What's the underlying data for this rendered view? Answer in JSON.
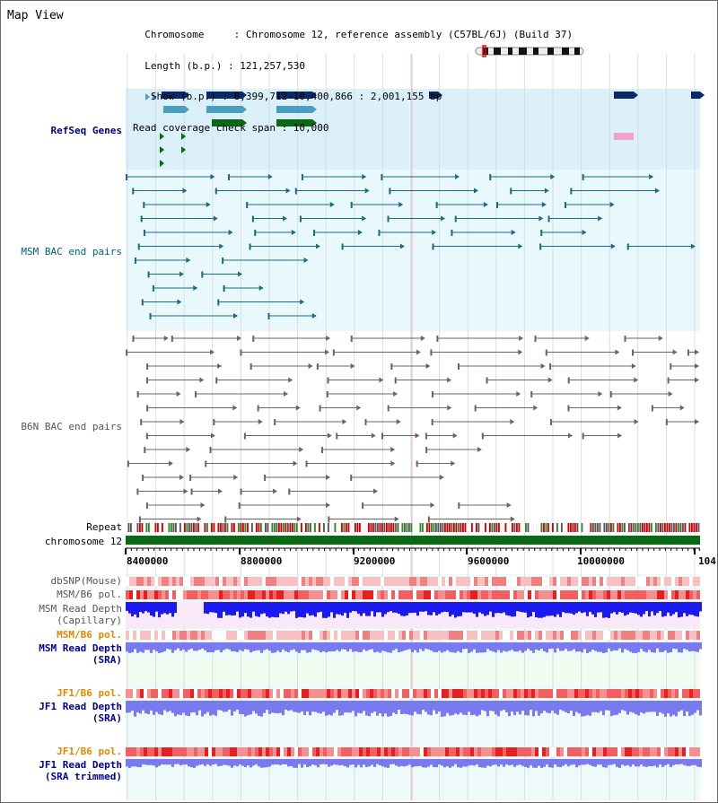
{
  "view": {
    "title": "Map View",
    "info_lines": [
      "  Chromosome     : Chromosome 12, reference assembly (C57BL/6J) (Build 37)",
      "  Length (b.p.) : 121,257,530",
      "   Show (b.p.) : 8,399,712-10,400,866 : 2,001,155 bp",
      "Read coverage check span : 10,000"
    ]
  },
  "tracks": {
    "refseq": "RefSeq Genes",
    "msm_bac": "MSM BAC end pairs",
    "b6n_bac": "B6N BAC end pairs",
    "repeat": "Repeat",
    "chromosome": "chromosome 12",
    "dbsnp": "dbSNP(Mouse)",
    "msm_b6_pol_1": "MSM/B6 pol.",
    "msm_read_depth_cap_1": "MSM Read Depth",
    "msm_read_depth_cap_2": "(Capillary)",
    "msm_b6_pol_2": "MSM/B6 pol.",
    "msm_read_depth_sra_1": "MSM Read Depth",
    "msm_read_depth_sra_2": "(SRA)",
    "jf1_b6_pol_1": "JF1/B6 pol.",
    "jf1_read_depth_sra_1": "JF1 Read Depth",
    "jf1_read_depth_sra_2": "(SRA)",
    "jf1_b6_pol_2": "JF1/B6 pol.",
    "jf1_read_depth_trim_1": "JF1 Read Depth",
    "jf1_read_depth_trim_2": "(SRA trimmed)"
  },
  "axis": {
    "ticks": [
      "8400000",
      "8800000",
      "9200000",
      "9600000",
      "10000000",
      "104"
    ]
  },
  "colors": {
    "refseq_bg": "#dcf0fa",
    "msm_bg": "#e8f8fc",
    "navy_gene": "#0a2a66",
    "teal_gene": "#4a9ec0",
    "green_gene": "#0a6a14",
    "pink_gene": "#f4a0c8",
    "msm_line": "#1a6a8a",
    "b6n_line": "#666666",
    "chromosome": "#0a6a14",
    "depth_blue": "#1a1aee",
    "depth_lavender": "#7a7af0"
  }
}
